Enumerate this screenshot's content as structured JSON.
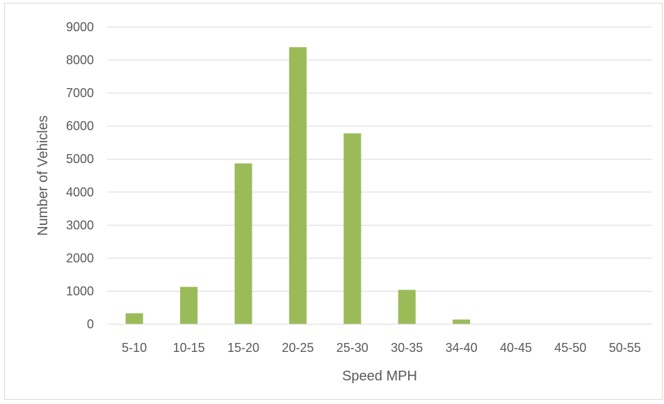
{
  "chart_data": {
    "type": "bar",
    "categories": [
      "5-10",
      "10-15",
      "15-20",
      "20-25",
      "25-30",
      "30-35",
      "34-40",
      "40-45",
      "45-50",
      "50-55"
    ],
    "series": [
      {
        "values": [
          330,
          1130,
          4870,
          8390,
          5780,
          1040,
          140,
          0,
          0,
          0
        ]
      }
    ],
    "xlabel": "Speed MPH",
    "ylabel": "Number of Vehicles",
    "ylim": [
      0,
      9000
    ],
    "yticks": [
      0,
      1000,
      2000,
      3000,
      4000,
      5000,
      6000,
      7000,
      8000,
      9000
    ],
    "grid": true,
    "legend": "none",
    "colors": {
      "bar": "#9bbb59",
      "grid": "#d9d9d9",
      "axis": "#d9d9d9",
      "text": "#595959"
    }
  }
}
